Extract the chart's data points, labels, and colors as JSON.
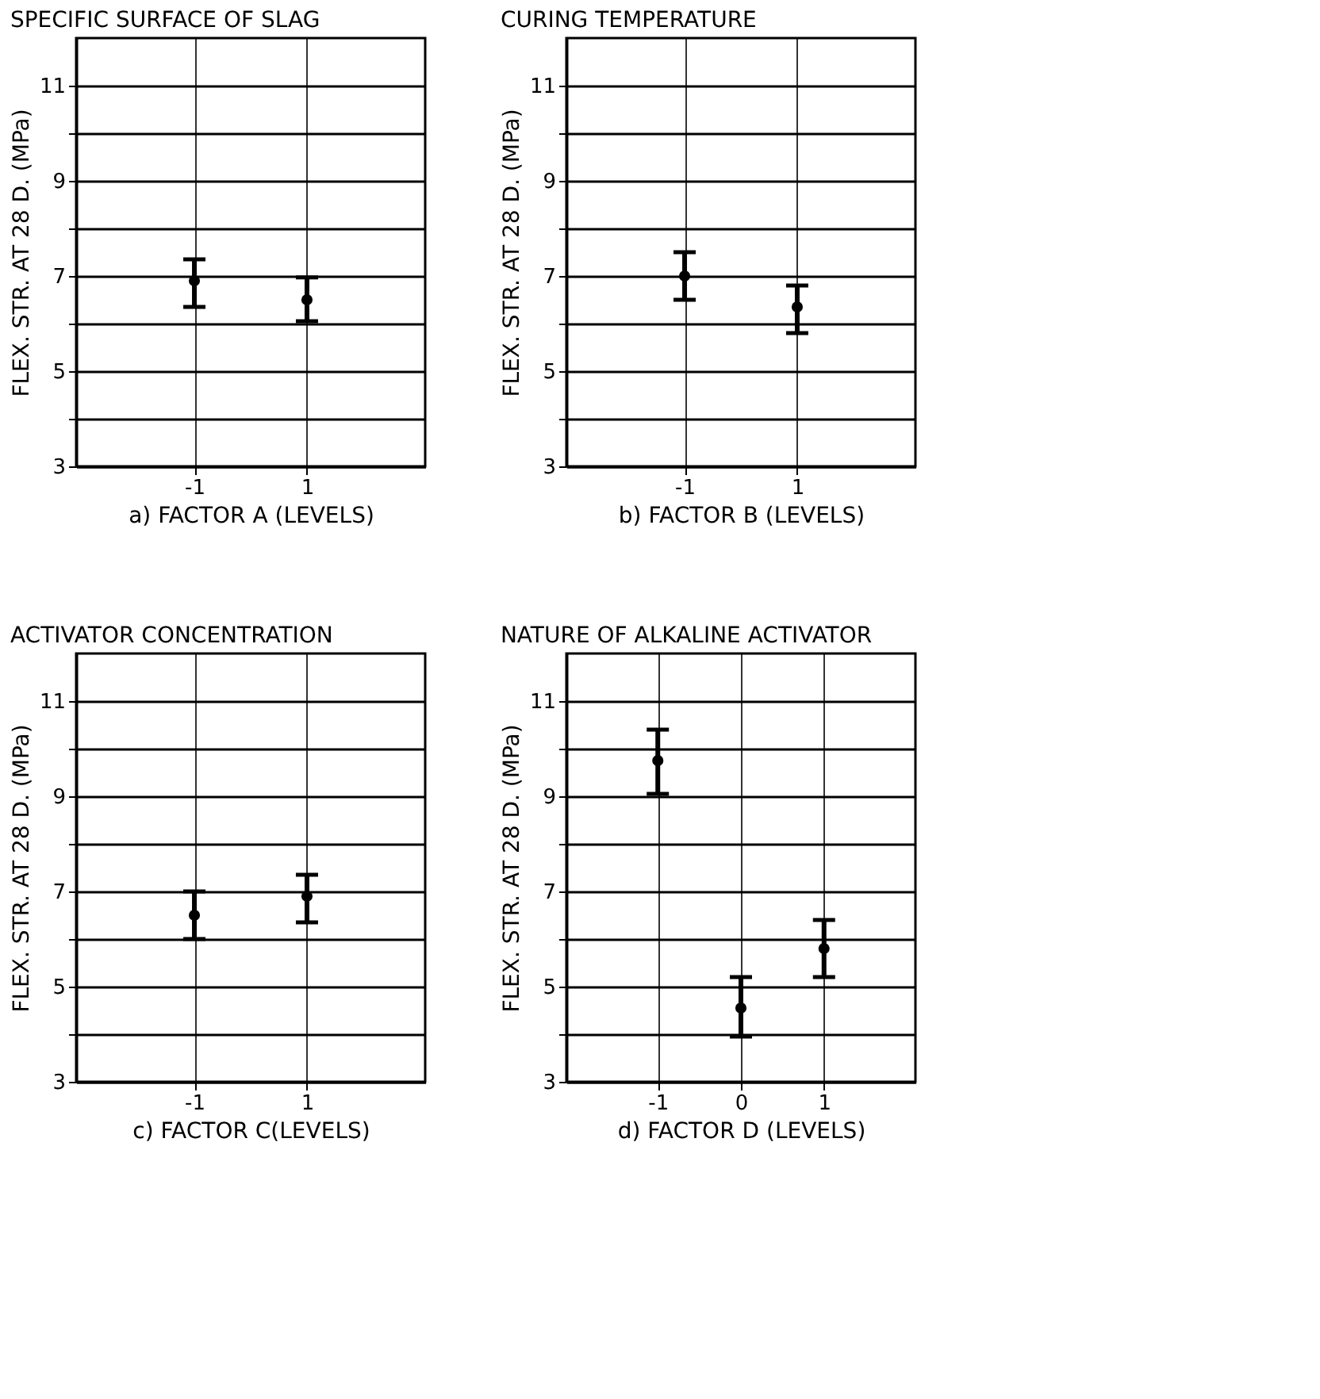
{
  "chart_data": [
    {
      "type": "scatter",
      "title": "SPECIFIC SURFACE OF SLAG",
      "xlabel": "a) FACTOR A (LEVELS)",
      "ylabel": "FLEX. STR. AT 28 D. (MPa)",
      "x": [
        -1,
        1
      ],
      "xlim": [
        -3.1,
        3.1
      ],
      "xticks": [
        -1,
        1
      ],
      "ylim": [
        3,
        12
      ],
      "yticks": [
        3,
        {
          "value": 4,
          "label": null
        },
        5,
        {
          "value": 6,
          "label": null
        },
        7,
        {
          "value": 8,
          "label": null
        },
        9,
        {
          "value": 10,
          "label": null
        },
        11
      ],
      "grid": true,
      "marker": "circle",
      "series": [
        {
          "color": "#000000",
          "values": [
            6.9,
            6.5
          ],
          "errors": [
            [
              6.35,
              7.35
            ],
            [
              6.05,
              6.97
            ]
          ]
        }
      ]
    },
    {
      "type": "scatter",
      "title": "CURING TEMPERATURE",
      "xlabel": "b) FACTOR B (LEVELS)",
      "ylabel": "FLEX. STR. AT 28 D. (MPa)",
      "x": [
        -1,
        1
      ],
      "xlim": [
        -3.1,
        3.1
      ],
      "xticks": [
        -1,
        1
      ],
      "ylim": [
        3,
        12
      ],
      "yticks": [
        3,
        {
          "value": 4,
          "label": null
        },
        5,
        {
          "value": 6,
          "label": null
        },
        7,
        {
          "value": 8,
          "label": null
        },
        9,
        {
          "value": 10,
          "label": null
        },
        11
      ],
      "grid": true,
      "marker": "circle",
      "series": [
        {
          "color": "#000000",
          "values": [
            7.0,
            6.35
          ],
          "errors": [
            [
              6.5,
              7.5
            ],
            [
              5.8,
              6.8
            ]
          ]
        }
      ]
    },
    {
      "type": "scatter",
      "title": "ACTIVATOR CONCENTRATION",
      "xlabel": "c) FACTOR C(LEVELS)",
      "ylabel": "FLEX. STR. AT 28 D. (MPa)",
      "x": [
        -1,
        1
      ],
      "xlim": [
        -3.1,
        3.1
      ],
      "xticks": [
        -1,
        1
      ],
      "ylim": [
        3,
        12
      ],
      "yticks": [
        3,
        {
          "value": 4,
          "label": null
        },
        5,
        {
          "value": 6,
          "label": null
        },
        7,
        {
          "value": 8,
          "label": null
        },
        9,
        {
          "value": 10,
          "label": null
        },
        11
      ],
      "grid": true,
      "marker": "circle",
      "series": [
        {
          "color": "#000000",
          "values": [
            6.5,
            6.9
          ],
          "errors": [
            [
              6.0,
              7.0
            ],
            [
              6.35,
              7.35
            ]
          ]
        }
      ]
    },
    {
      "type": "scatter",
      "title": "NATURE OF ALKALINE ACTIVATOR",
      "xlabel": "d) FACTOR D (LEVELS)",
      "ylabel": "FLEX. STR. AT 28 D. (MPa)",
      "x": [
        -1,
        0,
        1
      ],
      "xlim": [
        -2.1,
        2.1
      ],
      "xticks": [
        -1,
        0,
        1
      ],
      "ylim": [
        3,
        12
      ],
      "yticks": [
        3,
        {
          "value": 4,
          "label": null
        },
        5,
        {
          "value": 6,
          "label": null
        },
        7,
        {
          "value": 8,
          "label": null
        },
        9,
        {
          "value": 10,
          "label": null
        },
        11
      ],
      "grid": true,
      "marker": "circle",
      "series": [
        {
          "color": "#000000",
          "values": [
            9.75,
            4.55,
            5.8
          ],
          "errors": [
            [
              9.05,
              10.4
            ],
            [
              3.95,
              5.2
            ],
            [
              5.2,
              6.4
            ]
          ]
        }
      ]
    }
  ]
}
